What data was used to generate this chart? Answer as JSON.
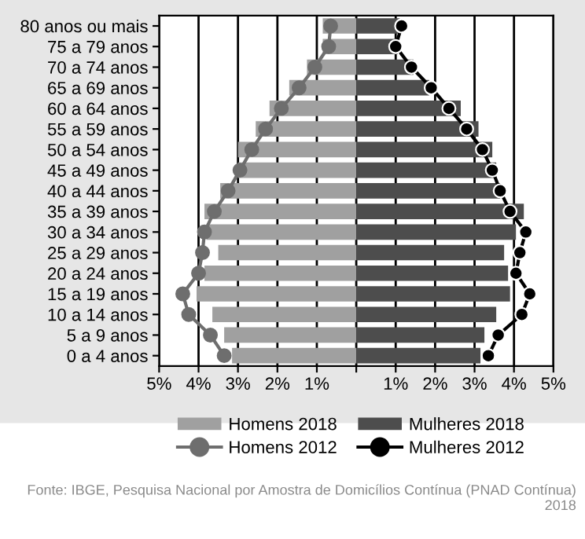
{
  "chart_data": {
    "type": "bar",
    "orientation": "horizontal",
    "categories": [
      "80 anos ou mais",
      "75 a 79 anos",
      "70 a 74 anos",
      "65 a 69 anos",
      "60 a 64 anos",
      "55 a 59 anos",
      "50 a 54 anos",
      "45 a 49 anos",
      "40 a 44 anos",
      "35 a 39 anos",
      "30 a 34 anos",
      "25 a 29 anos",
      "20 a 24 anos",
      "15 a 19 anos",
      "10 a 14 anos",
      "5 a 9 anos",
      "0 a 4 anos"
    ],
    "series": [
      {
        "name": "Homens 2018",
        "color": "#a0a0a0",
        "values": [
          -0.85,
          -0.85,
          -1.25,
          -1.7,
          -2.2,
          -2.55,
          -3.0,
          -3.0,
          -3.45,
          -3.85,
          -3.8,
          -3.5,
          -3.85,
          -4.05,
          -3.65,
          -3.35,
          -3.15
        ]
      },
      {
        "name": "Mulheres 2018",
        "color": "#4d4d4d",
        "values": [
          1.1,
          1.05,
          1.45,
          1.85,
          2.65,
          3.1,
          3.45,
          3.55,
          3.65,
          4.25,
          4.05,
          3.75,
          3.85,
          3.9,
          3.55,
          3.25,
          3.15
        ]
      },
      {
        "name": "Homens 2012",
        "type": "line",
        "color": "#6e6e6e",
        "values": [
          -0.65,
          -0.7,
          -1.05,
          -1.45,
          -1.9,
          -2.3,
          -2.65,
          -2.95,
          -3.25,
          -3.6,
          -3.85,
          -3.9,
          -4.0,
          -4.4,
          -4.25,
          -3.7,
          -3.35
        ]
      },
      {
        "name": "Mulheres 2012",
        "type": "line",
        "color": "#000000",
        "values": [
          1.15,
          1.0,
          1.4,
          1.9,
          2.35,
          2.8,
          3.2,
          3.45,
          3.65,
          3.9,
          4.3,
          4.15,
          4.05,
          4.4,
          4.2,
          3.6,
          3.35
        ]
      }
    ],
    "xlim": [
      -5,
      5
    ],
    "xticks": [
      {
        "value": -5,
        "label": "5%"
      },
      {
        "value": -4,
        "label": "4%"
      },
      {
        "value": -3,
        "label": "3%"
      },
      {
        "value": -2,
        "label": "2%"
      },
      {
        "value": -1,
        "label": "1%"
      },
      {
        "value": 0,
        "label": null
      },
      {
        "value": 1,
        "label": "1%"
      },
      {
        "value": 2,
        "label": "2%"
      },
      {
        "value": 3,
        "label": "3%"
      },
      {
        "value": 4,
        "label": "4%"
      },
      {
        "value": 5,
        "label": "5%"
      }
    ],
    "stacked": true,
    "grid": "x",
    "marker": "circle",
    "legend": "bottom",
    "annotations": [
      "Fonte: IBGE, Pesquisa Nacional por Amostra de Domicílios Contínua (PNAD Contínua) 2018"
    ]
  }
}
